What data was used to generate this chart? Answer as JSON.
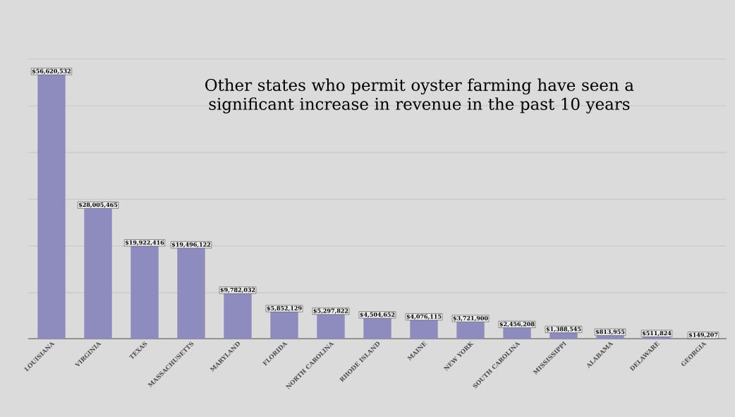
{
  "chart_data": {
    "type": "bar",
    "title": "Other states who permit oyster farming have seen a significant increase in revenue in the past 10 years",
    "categories": [
      "LOUISIANA",
      "VIRGINIA",
      "TEXAS",
      "MASSACHUSETTS",
      "MARYLAND",
      "FLORIDA",
      "NORTH CAROLINA",
      "RHODE ISLAND",
      "MAINE",
      "NEW YORK",
      "SOUTH CAROLINA",
      "MISSISSIPPI",
      "ALABAMA",
      "DELAWARE",
      "GEORGIA"
    ],
    "values": [
      56620532,
      28005465,
      19922416,
      19496122,
      9782032,
      5852129,
      5297822,
      4504652,
      4076115,
      3721900,
      2456208,
      1388545,
      813955,
      511824,
      149207
    ],
    "value_labels": [
      "$56,620,532",
      "$28,005,465",
      "$19,922,416",
      "$19,496,122",
      "$9,782,032",
      "$5,852,129",
      "$5,297,822",
      "$4,504,652",
      "$4,076,115",
      "$3,721,900",
      "$2,456,208",
      "$1,388,545",
      "$813,955",
      "$511,824",
      "$149,207"
    ],
    "color": "#8e8bbf",
    "grid": "y",
    "tick_labels": "x"
  }
}
